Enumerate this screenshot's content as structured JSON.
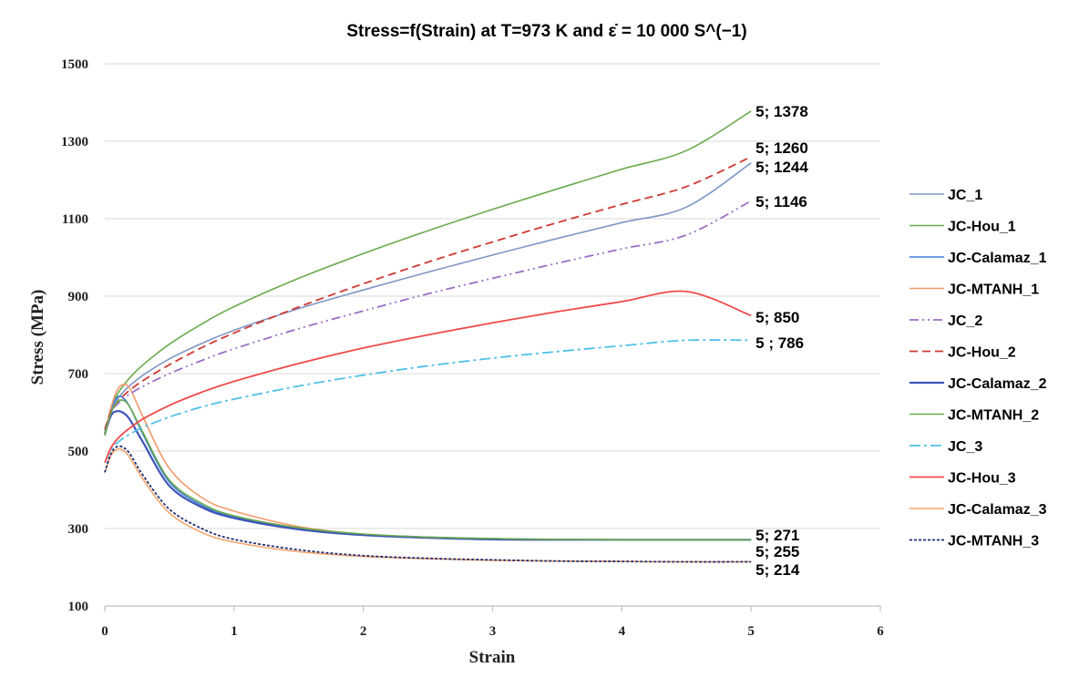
{
  "chart_data": {
    "type": "line",
    "title": "Stress=f(Strain)  at T=973 K and ε̇ = 10 000 S^(−1)",
    "xlabel": "Strain",
    "ylabel": "Stress (MPa)",
    "xlim": [
      0,
      6
    ],
    "ylim": [
      100,
      1500
    ],
    "xticks": [
      0,
      1,
      2,
      3,
      4,
      5,
      6
    ],
    "yticks": [
      100,
      300,
      500,
      700,
      900,
      1100,
      1300,
      1500
    ],
    "grid": "horizontal",
    "legend_position": "right",
    "x": [
      0,
      0.05,
      0.1,
      0.15,
      0.2,
      0.3,
      0.5,
      0.75,
      1,
      1.5,
      2,
      2.5,
      3,
      3.5,
      4,
      4.5,
      5
    ],
    "series": [
      {
        "name": "JC_1",
        "color": "#7f96c4",
        "dash": "",
        "width": 1.6,
        "values": [
          540,
          605,
          635,
          655,
          671,
          697,
          738,
          778,
          812,
          868,
          916,
          962,
          1006,
          1049,
          1090,
          1130,
          1244
        ]
      },
      {
        "name": "JC-Hou_1",
        "color": "#6aaa4d",
        "dash": "",
        "width": 1.6,
        "values": [
          540,
          612,
          648,
          672,
          692,
          724,
          776,
          828,
          873,
          946,
          1010,
          1069,
          1124,
          1177,
          1228,
          1276,
          1378
        ]
      },
      {
        "name": "JC-Calamaz_1",
        "color": "#3f7fd0",
        "dash": "",
        "width": 1.6,
        "values": [
          545,
          610,
          640,
          635,
          610,
          540,
          420,
          360,
          330,
          300,
          285,
          278,
          274,
          272,
          271,
          271,
          271
        ]
      },
      {
        "name": "JC-MTANH_1",
        "color": "#f29a6b",
        "dash": "",
        "width": 1.6,
        "values": [
          545,
          615,
          660,
          672,
          658,
          585,
          455,
          380,
          345,
          305,
          285,
          276,
          273,
          271,
          271,
          271,
          271
        ]
      },
      {
        "name": "JC_2",
        "color": "#9b6fc4",
        "dash": "10,4,2,4,2,4",
        "width": 1.8,
        "values": [
          555,
          602,
          622,
          637,
          649,
          668,
          700,
          734,
          764,
          816,
          862,
          906,
          946,
          985,
          1022,
          1058,
          1146
        ]
      },
      {
        "name": "JC-Hou_2",
        "color": "#d03a34",
        "dash": "9,5",
        "width": 1.8,
        "values": [
          555,
          604,
          628,
          645,
          659,
          683,
          723,
          767,
          805,
          872,
          932,
          988,
          1040,
          1090,
          1137,
          1183,
          1260
        ]
      },
      {
        "name": "JC-Calamaz_2",
        "color": "#3f55b8",
        "dash": "",
        "width": 2.2,
        "values": [
          545,
          593,
          603,
          597,
          578,
          520,
          410,
          355,
          327,
          298,
          283,
          276,
          272,
          271,
          271,
          271,
          271
        ]
      },
      {
        "name": "JC-MTANH_2",
        "color": "#6aaa4d",
        "dash": "",
        "width": 1.6,
        "values": [
          545,
          600,
          628,
          630,
          610,
          545,
          425,
          365,
          333,
          302,
          286,
          278,
          274,
          272,
          271,
          271,
          271
        ]
      },
      {
        "name": "JC_3",
        "color": "#4fc0e8",
        "dash": "12,4,3,4",
        "width": 1.8,
        "values": [
          470,
          505,
          522,
          535,
          545,
          562,
          588,
          614,
          634,
          668,
          696,
          720,
          740,
          757,
          772,
          786,
          786
        ]
      },
      {
        "name": "JC-Hou_3",
        "color": "#f04a4a",
        "dash": "",
        "width": 1.8,
        "values": [
          470,
          510,
          532,
          548,
          561,
          584,
          618,
          652,
          680,
          726,
          766,
          800,
          831,
          860,
          886,
          912,
          850
        ]
      },
      {
        "name": "JC-Calamaz_3",
        "color": "#f5a46e",
        "dash": "",
        "width": 1.6,
        "values": [
          445,
          490,
          505,
          500,
          480,
          425,
          340,
          290,
          265,
          240,
          228,
          222,
          218,
          216,
          215,
          214,
          214
        ]
      },
      {
        "name": "JC-MTANH_3",
        "color": "#1f2e72",
        "dash": "3,2",
        "width": 1.8,
        "values": [
          445,
          495,
          512,
          508,
          490,
          435,
          350,
          300,
          272,
          245,
          230,
          223,
          219,
          216,
          215,
          214,
          214
        ]
      }
    ],
    "annotations": [
      {
        "text": "5; 1378",
        "x": 5,
        "y": 1378
      },
      {
        "text": "5; 1260",
        "x": 5,
        "y": 1260
      },
      {
        "text": "5; 1244",
        "x": 5,
        "y": 1244
      },
      {
        "text": "5; 1146",
        "x": 5,
        "y": 1146
      },
      {
        "text": "5; 850",
        "x": 5,
        "y": 850
      },
      {
        "text": "5 ; 786",
        "x": 5,
        "y": 786
      },
      {
        "text": "5; 271",
        "x": 5,
        "y": 271
      },
      {
        "text": "5; 255",
        "x": 5,
        "y": 255
      },
      {
        "text": "5; 214",
        "x": 5,
        "y": 214
      }
    ]
  }
}
